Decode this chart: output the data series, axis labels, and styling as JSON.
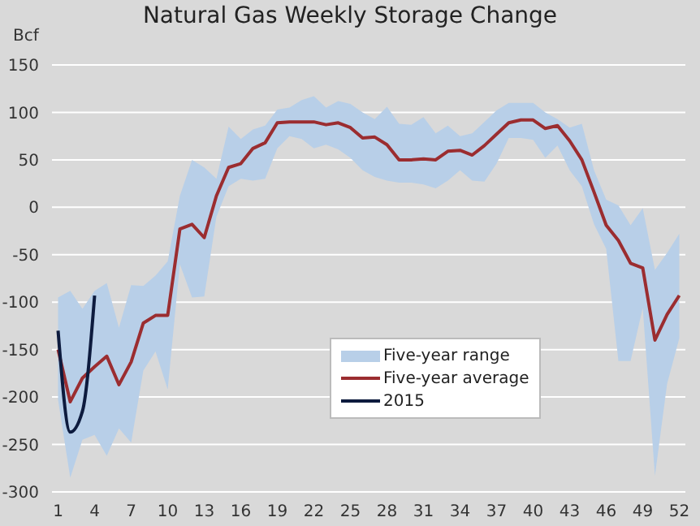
{
  "chart_data": {
    "type": "line",
    "title": "Natural Gas Weekly Storage Change",
    "ylabel": "Bcf",
    "x": [
      1,
      2,
      3,
      4,
      5,
      6,
      7,
      8,
      9,
      10,
      11,
      12,
      13,
      14,
      15,
      16,
      17,
      18,
      19,
      20,
      21,
      22,
      23,
      24,
      25,
      26,
      27,
      28,
      29,
      30,
      31,
      32,
      33,
      34,
      35,
      36,
      37,
      38,
      39,
      40,
      41,
      42,
      43,
      44,
      45,
      46,
      47,
      48,
      49,
      50,
      51,
      52
    ],
    "series": [
      {
        "name": "Five-year range",
        "type": "area",
        "color": "#b8cfe8",
        "values": [
          null,
          null,
          null,
          null,
          null,
          null,
          null,
          null,
          null,
          null,
          null,
          null,
          null,
          null,
          null,
          null,
          null,
          null,
          null,
          null,
          null,
          null,
          null,
          null,
          null,
          null,
          null,
          null,
          null,
          null,
          null,
          null,
          null,
          null,
          null,
          null,
          null,
          null,
          null,
          null,
          null,
          null,
          null,
          null,
          null,
          null,
          null,
          null,
          null,
          null,
          null,
          null
        ],
        "lower": [
          -203,
          -285,
          -245,
          -240,
          -262,
          -233,
          -248,
          -172,
          -152,
          -192,
          -60,
          -95,
          -94,
          -10,
          22,
          30,
          28,
          30,
          62,
          75,
          72,
          62,
          66,
          61,
          52,
          39,
          32,
          28,
          26,
          26,
          24,
          20,
          28,
          39,
          28,
          27,
          46,
          73,
          73,
          71,
          52,
          65,
          39,
          22,
          -18,
          -44,
          -162,
          -162,
          -106,
          -283,
          -186,
          -138
        ],
        "upper": [
          -95,
          -88,
          -107,
          -88,
          -80,
          -127,
          -82,
          -83,
          -72,
          -57,
          12,
          50,
          42,
          30,
          85,
          72,
          82,
          86,
          103,
          105,
          113,
          117,
          105,
          112,
          109,
          100,
          93,
          106,
          88,
          87,
          95,
          78,
          86,
          75,
          78,
          90,
          102,
          110,
          110,
          110,
          100,
          93,
          84,
          88,
          39,
          8,
          2,
          -19,
          -1,
          -66,
          -48,
          -28
        ]
      },
      {
        "name": "Five-year average",
        "type": "line",
        "color": "#9b2d30",
        "values": [
          -150,
          -205,
          -180,
          -168,
          -157,
          -187,
          -163,
          -122,
          -114,
          -114,
          -23,
          -18,
          -32,
          12,
          42,
          46,
          62,
          68,
          89,
          90,
          90,
          90,
          87,
          89,
          84,
          73,
          74,
          66,
          50,
          50,
          51,
          50,
          59,
          60,
          55,
          65,
          77,
          89,
          92,
          92,
          83,
          86,
          70,
          50,
          16,
          -19,
          -35,
          -59,
          -64,
          -140,
          -113,
          -93
        ]
      },
      {
        "name": "2015",
        "type": "line",
        "color": "#0d1b3e",
        "x": [
          1,
          2,
          3,
          4
        ],
        "values": [
          -130,
          -237,
          -215,
          -93
        ]
      }
    ],
    "xlim": [
      0.5,
      52.5
    ],
    "xticks": [
      1,
      4,
      7,
      10,
      13,
      16,
      19,
      22,
      25,
      28,
      31,
      34,
      37,
      40,
      43,
      46,
      49,
      52
    ],
    "ylim": [
      -300,
      150
    ],
    "yticks": [
      -300,
      -250,
      -200,
      -150,
      -100,
      -50,
      0,
      50,
      100,
      150
    ],
    "grid": "y",
    "legend": "bottom"
  }
}
